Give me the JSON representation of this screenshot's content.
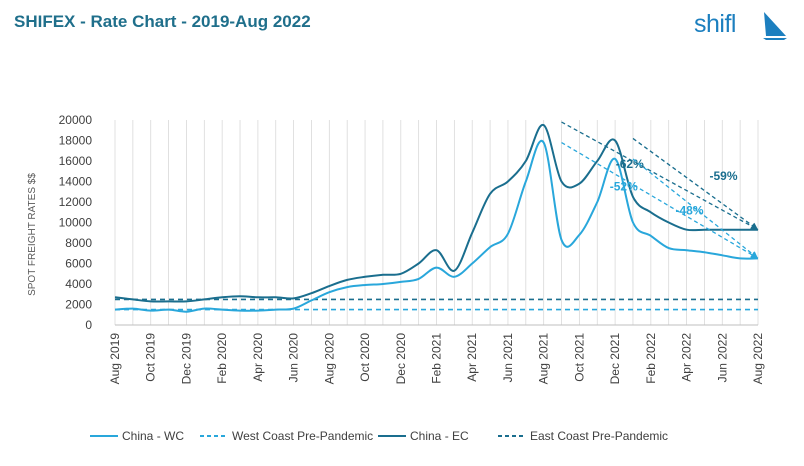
{
  "page": {
    "title": "SHIFEX - Rate Chart - 2019-Aug 2022",
    "logo_text": "shifl"
  },
  "colors": {
    "china_wc": "#29a7db",
    "china_ec": "#1a6e8e",
    "wc_pre": "#29a7db",
    "ec_pre": "#1a6e8e",
    "title": "#1f6f8b",
    "brand": "#1c7fbf",
    "grid": "#d9d9d9"
  },
  "chart_data": {
    "type": "line",
    "title": "SHIFEX - Rate Chart - 2019-Aug 2022",
    "xlabel": "",
    "ylabel": "SPOT FREIGHT RATES $$",
    "ylim": [
      0,
      20000
    ],
    "yticks": [
      0,
      2000,
      4000,
      6000,
      8000,
      10000,
      12000,
      14000,
      16000,
      18000,
      20000
    ],
    "x": [
      "Aug 2019",
      "Sep 2019",
      "Oct 2019",
      "Nov 2019",
      "Dec 2019",
      "Jan 2020",
      "Feb 2020",
      "Mar 2020",
      "Apr 2020",
      "May 2020",
      "Jun 2020",
      "Jul 2020",
      "Aug 2020",
      "Sep 2020",
      "Oct 2020",
      "Nov 2020",
      "Dec 2020",
      "Jan 2021",
      "Feb 2021",
      "Mar 2021",
      "Apr 2021",
      "May 2021",
      "Jun 2021",
      "Jul 2021",
      "Aug 2021",
      "Sep 2021",
      "Oct 2021",
      "Nov 2021",
      "Dec 2021",
      "Jan 2022",
      "Feb 2022",
      "Mar 2022",
      "Apr 2022",
      "May 2022",
      "Jun 2022",
      "Jul 2022",
      "Aug 2022"
    ],
    "xtick_labels": [
      "Aug 2019",
      "Oct 2019",
      "Dec 2019",
      "Feb 2020",
      "Apr 2020",
      "Jun 2020",
      "Aug 2020",
      "Oct 2020",
      "Dec 2020",
      "Feb 2021",
      "Apr 2021",
      "Jun 2021",
      "Aug 2021",
      "Oct 2021",
      "Dec 2021",
      "Feb 2022",
      "Apr 2022",
      "Jun 2022",
      "Aug 2022"
    ],
    "series": [
      {
        "name": "China - WC",
        "style": "solid",
        "color": "#29a7db",
        "values": [
          1500,
          1600,
          1400,
          1500,
          1300,
          1600,
          1500,
          1400,
          1400,
          1500,
          1600,
          2400,
          3200,
          3700,
          3900,
          4000,
          4200,
          4500,
          5600,
          4700,
          6000,
          7600,
          8900,
          14000,
          17800,
          8300,
          8800,
          12000,
          16200,
          10000,
          8700,
          7500,
          7300,
          7100,
          6800,
          6500,
          6500
        ]
      },
      {
        "name": "West Coast Pre-Pandemic",
        "style": "dashed",
        "color": "#29a7db",
        "values": [
          1500,
          1500,
          1500,
          1500,
          1500,
          1500,
          1500,
          1500,
          1500,
          1500,
          1500,
          1500,
          1500,
          1500,
          1500,
          1500,
          1500,
          1500,
          1500,
          1500,
          1500,
          1500,
          1500,
          1500,
          1500,
          1500,
          1500,
          1500,
          1500,
          1500,
          1500,
          1500,
          1500,
          1500,
          1500,
          1500,
          1500
        ]
      },
      {
        "name": "China - EC",
        "style": "solid",
        "color": "#1a6e8e",
        "values": [
          2700,
          2500,
          2300,
          2300,
          2300,
          2500,
          2700,
          2800,
          2700,
          2700,
          2600,
          3100,
          3800,
          4400,
          4700,
          4900,
          5000,
          6000,
          7300,
          5300,
          9000,
          12800,
          14000,
          16000,
          19500,
          14000,
          13800,
          16000,
          18000,
          12500,
          11000,
          10000,
          9300,
          9300,
          9300,
          9300,
          9300
        ]
      },
      {
        "name": "East Coast Pre-Pandemic",
        "style": "dashed",
        "color": "#1a6e8e",
        "values": [
          2500,
          2500,
          2500,
          2500,
          2500,
          2500,
          2500,
          2500,
          2500,
          2500,
          2500,
          2500,
          2500,
          2500,
          2500,
          2500,
          2500,
          2500,
          2500,
          2500,
          2500,
          2500,
          2500,
          2500,
          2500,
          2500,
          2500,
          2500,
          2500,
          2500,
          2500,
          2500,
          2500,
          2500,
          2500,
          2500,
          2500
        ]
      }
    ],
    "trend_lines": [
      {
        "series": "China - EC",
        "from_x": "Sep 2021",
        "from_y": 19800,
        "to_x": "Aug 2022",
        "to_y": 9300,
        "label": "-62%"
      },
      {
        "series": "China - EC",
        "from_x": "Jan 2022",
        "from_y": 18200,
        "to_x": "Aug 2022",
        "to_y": 9300,
        "label": "-59%"
      },
      {
        "series": "China - WC",
        "from_x": "Sep 2021",
        "from_y": 17800,
        "to_x": "Aug 2022",
        "to_y": 6500,
        "label": "-52%"
      },
      {
        "series": "China - WC",
        "from_x": "Jan 2022",
        "from_y": 16200,
        "to_x": "Aug 2022",
        "to_y": 6500,
        "label": "-48%"
      }
    ],
    "vertical_gridlines": true,
    "legend_position": "bottom"
  }
}
